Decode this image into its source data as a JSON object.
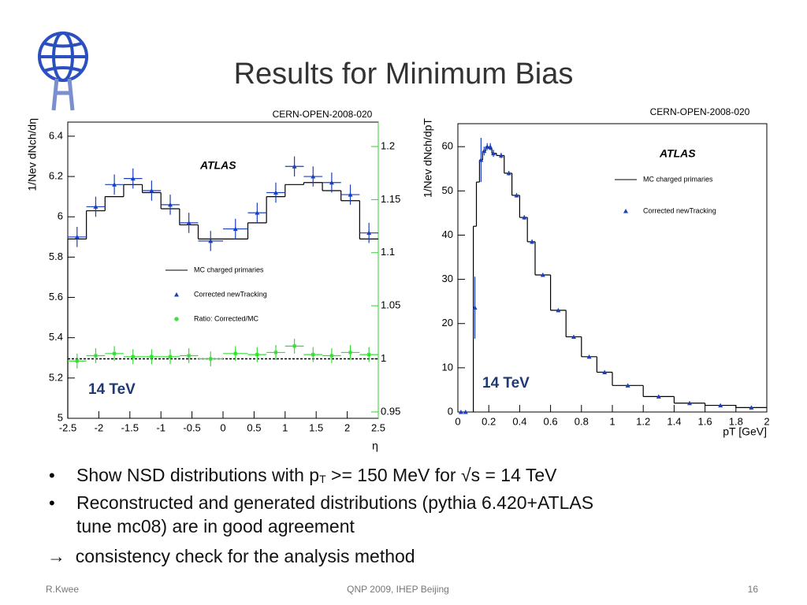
{
  "slide": {
    "title": "Results for Minimum Bias",
    "bullets": [
      [
        "Show NSD distributions with p",
        "T",
        " >= 150 MeV for √s = 14 TeV"
      ],
      [
        "Reconstructed and generated distributions (pythia 6.420+ATLAS",
        "tune mc08) are in good agreement"
      ]
    ],
    "arrow_line": "→  consistency check for the analysis method",
    "footer": {
      "author": "R.Kwee",
      "event": "QNP 2009, IHEP Beijing",
      "page": "16"
    }
  },
  "chart_data": [
    {
      "type": "errorbar",
      "source": "CERN-OPEN-2008-020",
      "brand": "ATLAS",
      "energy": "14 TeV",
      "xlabel": "η",
      "ylabel": "1/Nev dNch/dη",
      "xlim": [
        -2.5,
        2.5
      ],
      "xticks": [
        -2.5,
        -2,
        -1.5,
        -1,
        -0.5,
        0,
        0.5,
        1,
        1.5,
        2,
        2.5
      ],
      "ylim": [
        5,
        6.47
      ],
      "yticks": [
        5,
        5.2,
        5.4,
        5.6,
        5.8,
        6,
        6.2,
        6.4
      ],
      "y2lim": [
        0.944,
        1.223
      ],
      "y2ticks": [
        0.95,
        1,
        1.05,
        1.1,
        1.15,
        1.2
      ],
      "y2_color": "#33cc33",
      "y2_reference": 1,
      "series": [
        {
          "name": "MC charged primaries",
          "kind": "step",
          "color": "#000000",
          "bins": [
            -2.5,
            -2.2,
            -1.9,
            -1.6,
            -1.3,
            -1.0,
            -0.7,
            -0.4,
            0,
            0.4,
            0.7,
            1.0,
            1.3,
            1.6,
            1.9,
            2.2,
            2.5
          ],
          "values": [
            5.89,
            6.03,
            6.1,
            6.16,
            6.12,
            6.04,
            5.96,
            5.89,
            5.89,
            5.97,
            6.1,
            6.16,
            6.17,
            6.13,
            6.08,
            5.89
          ]
        },
        {
          "name": "Corrected newTracking",
          "kind": "points",
          "marker": "triangle",
          "color": "#1a3fbf",
          "x": [
            -2.35,
            -2.05,
            -1.75,
            -1.45,
            -1.15,
            -0.85,
            -0.55,
            -0.2,
            0.2,
            0.55,
            0.85,
            1.15,
            1.45,
            1.75,
            2.05,
            2.35
          ],
          "xerr": [
            0.15,
            0.15,
            0.15,
            0.15,
            0.15,
            0.15,
            0.15,
            0.2,
            0.2,
            0.15,
            0.15,
            0.15,
            0.15,
            0.15,
            0.15,
            0.15
          ],
          "values": [
            5.9,
            6.05,
            6.16,
            6.19,
            6.13,
            6.06,
            5.97,
            5.88,
            5.94,
            6.02,
            6.12,
            6.25,
            6.2,
            6.17,
            6.11,
            5.92
          ],
          "yerr": [
            0.05,
            0.05,
            0.05,
            0.05,
            0.05,
            0.05,
            0.05,
            0.05,
            0.05,
            0.05,
            0.05,
            0.05,
            0.05,
            0.05,
            0.05,
            0.05
          ]
        },
        {
          "name": "Ratio: Corrected/MC",
          "kind": "points",
          "marker": "star",
          "color": "#33dd33",
          "axis": "y2",
          "x": [
            -2.35,
            -2.05,
            -1.75,
            -1.45,
            -1.15,
            -0.85,
            -0.55,
            -0.2,
            0.2,
            0.55,
            0.85,
            1.15,
            1.45,
            1.75,
            2.05,
            2.35
          ],
          "xerr": [
            0.15,
            0.15,
            0.15,
            0.15,
            0.15,
            0.15,
            0.15,
            0.2,
            0.2,
            0.15,
            0.15,
            0.15,
            0.15,
            0.15,
            0.15,
            0.15
          ],
          "values": [
            0.998,
            1.003,
            1.005,
            1.002,
            1.002,
            1.002,
            1.003,
            1.0,
            1.005,
            1.004,
            1.006,
            1.012,
            1.004,
            1.003,
            1.006,
            1.004
          ],
          "yerr": [
            0.007,
            0.007,
            0.007,
            0.007,
            0.007,
            0.007,
            0.007,
            0.007,
            0.007,
            0.007,
            0.007,
            0.007,
            0.007,
            0.007,
            0.007,
            0.007
          ]
        }
      ]
    },
    {
      "type": "errorbar",
      "source": "CERN-OPEN-2008-020",
      "brand": "ATLAS",
      "energy": "14 TeV",
      "xlabel": "pT [GeV]",
      "ylabel": "1/Nev dNch/dpT",
      "xlim": [
        0,
        2
      ],
      "xticks": [
        0,
        0.2,
        0.4,
        0.6,
        0.8,
        1,
        1.2,
        1.4,
        1.6,
        1.8,
        2
      ],
      "ylim": [
        0,
        65.2
      ],
      "yticks": [
        0,
        10,
        20,
        30,
        40,
        50,
        60
      ],
      "series": [
        {
          "name": "MC charged primaries",
          "kind": "step",
          "color": "#000000",
          "bins": [
            0.1,
            0.12,
            0.14,
            0.16,
            0.18,
            0.2,
            0.22,
            0.25,
            0.3,
            0.35,
            0.4,
            0.45,
            0.5,
            0.6,
            0.7,
            0.8,
            0.9,
            1.0,
            1.2,
            1.4,
            1.6,
            1.8,
            2.0
          ],
          "values": [
            42,
            52,
            57,
            59,
            60,
            59.5,
            58.5,
            58,
            54,
            49,
            44,
            38.5,
            31,
            23,
            17,
            12.5,
            9,
            6,
            3.5,
            2,
            1.5,
            1
          ]
        },
        {
          "name": "Corrected newTracking",
          "kind": "points",
          "marker": "triangle",
          "color": "#1a3fbf",
          "x": [
            0.02,
            0.05,
            0.11,
            0.15,
            0.17,
            0.19,
            0.21,
            0.23,
            0.28,
            0.33,
            0.38,
            0.43,
            0.48,
            0.55,
            0.65,
            0.75,
            0.85,
            0.95,
            1.1,
            1.3,
            1.5,
            1.7,
            1.9
          ],
          "values": [
            0,
            0,
            23.6,
            57,
            59,
            60,
            60,
            58.5,
            58,
            54,
            49,
            44,
            38.5,
            31,
            23,
            17,
            12.5,
            9,
            6,
            3.5,
            2,
            1.5,
            1
          ],
          "yerr": [
            0,
            0,
            7,
            5,
            1,
            0.8,
            0.8,
            0.8,
            0.6,
            0.5,
            0.5,
            0.5,
            0.5,
            0.4,
            0.4,
            0.3,
            0.3,
            0.3,
            0.2,
            0.2,
            0.2,
            0.2,
            0.2
          ]
        }
      ]
    }
  ]
}
